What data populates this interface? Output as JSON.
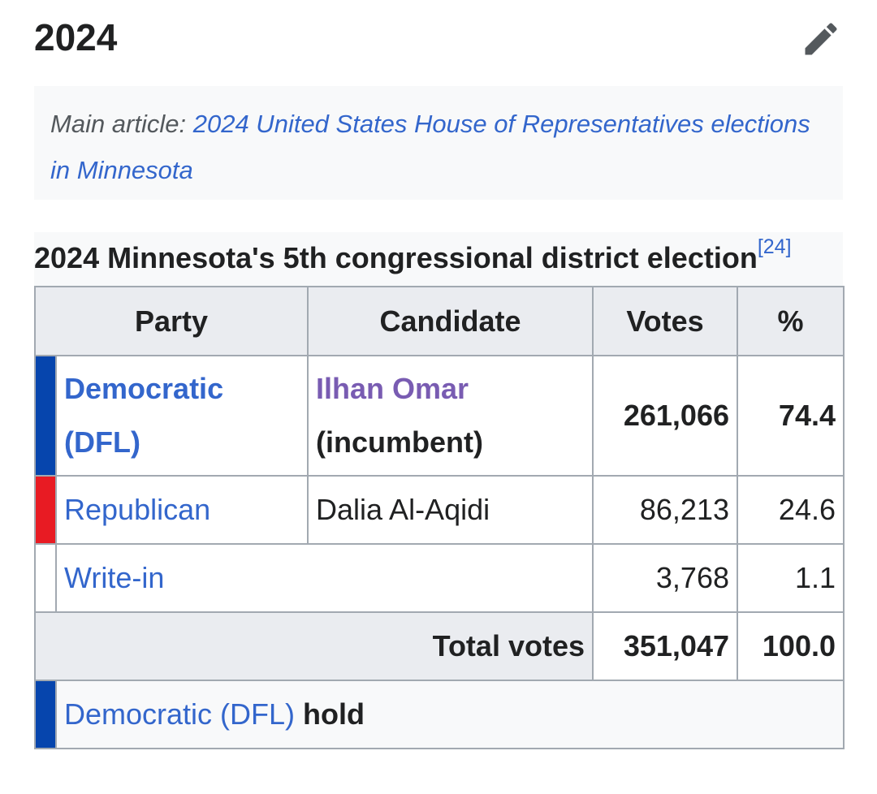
{
  "section": {
    "title": "2024"
  },
  "hatnote": {
    "prefix": "Main article: ",
    "link_text": "2024 United States House of Representatives elections in Minnesota"
  },
  "table": {
    "caption": "2024 Minnesota's 5th congressional district election",
    "reference": "[24]",
    "headers": [
      "Party",
      "Candidate",
      "Votes",
      "%"
    ],
    "rows": [
      {
        "party_line1": "Democratic",
        "party_line2": "(DFL)",
        "candidate_line1": "Ilhan Omar",
        "candidate_line2": "(incumbent)",
        "votes": "261,066",
        "percent": "74.4",
        "party_color": "#0645ad"
      },
      {
        "party": "Republican",
        "candidate": "Dalia Al-Aqidi",
        "votes": "86,213",
        "percent": "24.6",
        "party_color": "#e81b23"
      },
      {
        "party": "Write-in",
        "votes": "3,768",
        "percent": "1.1",
        "party_color": "#ffffff"
      }
    ],
    "total": {
      "label": "Total votes",
      "votes": "351,047",
      "percent": "100.0"
    },
    "result": {
      "party": "Democratic (DFL)",
      "status": "hold",
      "party_color": "#0645ad"
    }
  },
  "icons": {
    "edit": "pencil-icon"
  },
  "colors": {
    "link": "#3366cc",
    "visited_link": "#795cb2",
    "header_bg": "#eaecf0"
  }
}
